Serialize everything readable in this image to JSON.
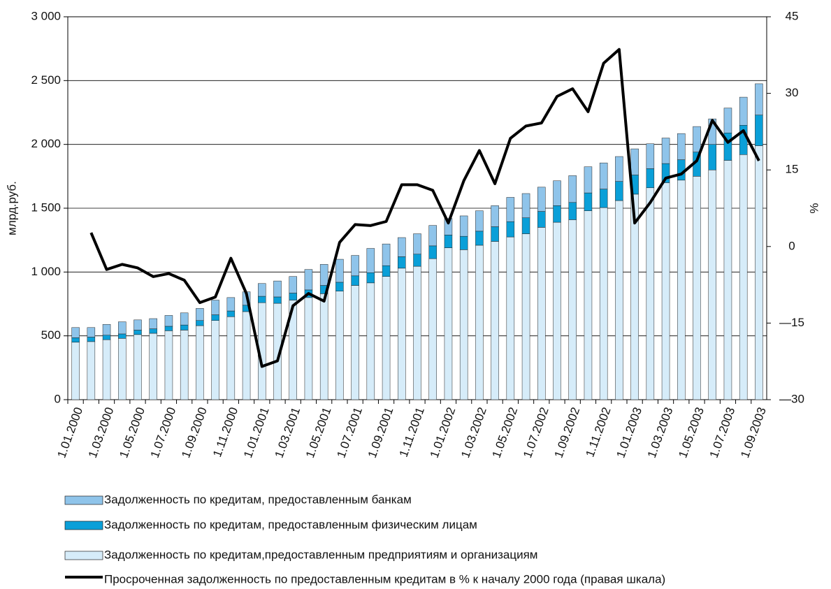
{
  "chart_data": {
    "type": "bar_line",
    "y_label": "млрд.руб.",
    "y2_label": "%",
    "categories": [
      "1.01.2000",
      null,
      "1.03.2000",
      null,
      "1.05.2000",
      null,
      "1.07.2000",
      null,
      "1.09.2000",
      null,
      "1.11.2000",
      null,
      "1.01.2001",
      null,
      "1.03.2001",
      null,
      "1.05.2001",
      null,
      "1.07.2001",
      null,
      "1.09.2001",
      null,
      "1.11.2001",
      null,
      "1.01.2002",
      null,
      "1.03.2002",
      null,
      "1.05.2002",
      null,
      "1.07.2002",
      null,
      "1.09.2002",
      null,
      "1.11.2002",
      null,
      "1.01.2003",
      null,
      "1.03.2003",
      null,
      "1.05.2003",
      null,
      "1.07.2003",
      null,
      "1.09.2003"
    ],
    "series": [
      {
        "name": "Задолженность по  кредитам, предоставленным банкам",
        "type": "bar",
        "color": "#8fc4ea",
        "values": [
          80,
          75,
          85,
          95,
          80,
          80,
          85,
          95,
          95,
          115,
          105,
          105,
          100,
          125,
          130,
          160,
          165,
          180,
          160,
          190,
          170,
          150,
          160,
          160,
          130,
          160,
          160,
          165,
          190,
          190,
          190,
          195,
          210,
          205,
          205,
          195,
          205,
          195,
          200,
          205,
          200,
          200,
          195,
          220,
          245
        ]
      },
      {
        "name": "Задолженность по  кредитам, предоставленным физическим лицам",
        "type": "bar",
        "color": "#0a9fd8",
        "values": [
          35,
          35,
          35,
          35,
          35,
          35,
          35,
          40,
          40,
          45,
          45,
          50,
          50,
          50,
          55,
          60,
          65,
          70,
          75,
          80,
          85,
          90,
          95,
          100,
          100,
          105,
          110,
          115,
          120,
          125,
          125,
          130,
          135,
          140,
          145,
          150,
          150,
          150,
          150,
          160,
          190,
          200,
          215,
          230,
          240
        ]
      },
      {
        "name": "Задолженность по кредитам,предоставленным предприятиям и организациям",
        "type": "bar",
        "color": "#d6ecf9",
        "values": [
          450,
          455,
          470,
          480,
          510,
          520,
          540,
          545,
          580,
          620,
          650,
          690,
          760,
          755,
          780,
          800,
          830,
          850,
          895,
          915,
          965,
          1030,
          1045,
          1105,
          1190,
          1175,
          1210,
          1240,
          1275,
          1300,
          1350,
          1390,
          1410,
          1480,
          1505,
          1560,
          1610,
          1660,
          1700,
          1720,
          1750,
          1800,
          1875,
          1920,
          1990
        ]
      },
      {
        "name": "Просроченная задолженность по предоставленным кредитам  в % к началу 2000 года (правая шкала)",
        "type": "line",
        "axis": "y2",
        "color": "#000000",
        "values": [
          null,
          2.7,
          -4.5,
          -3.5,
          -4.2,
          -5.9,
          -5.3,
          -6.6,
          -11,
          -9.9,
          -2.3,
          -9.2,
          -23.5,
          -22.4,
          -11.6,
          -9.2,
          -10.7,
          0.8,
          4.3,
          4.1,
          4.9,
          12.1,
          12.1,
          11,
          4.6,
          12.9,
          18.8,
          12.3,
          21.2,
          23.6,
          24.2,
          29.4,
          30.9,
          26.4,
          35.9,
          38.6,
          4.6,
          8.6,
          13.4,
          14.2,
          16.8,
          24.7,
          20.4,
          22.7,
          16.8
        ]
      }
    ],
    "ylim": [
      0,
      3000
    ],
    "yticks": [
      0,
      500,
      {
        "value": 1000,
        "label": "1 000"
      },
      {
        "value": 1500,
        "label": "1 500"
      },
      {
        "value": 2000,
        "label": "2 000"
      },
      {
        "value": 2500,
        "label": "2 500"
      },
      {
        "value": 3000,
        "label": "3 000"
      }
    ],
    "y2lim": [
      -30,
      45
    ],
    "y2ticks": [
      {
        "value": -30,
        "label": "—30"
      },
      {
        "value": -15,
        "label": "—15"
      },
      0,
      15,
      30,
      45
    ],
    "grid": true,
    "legend": "bottom"
  }
}
